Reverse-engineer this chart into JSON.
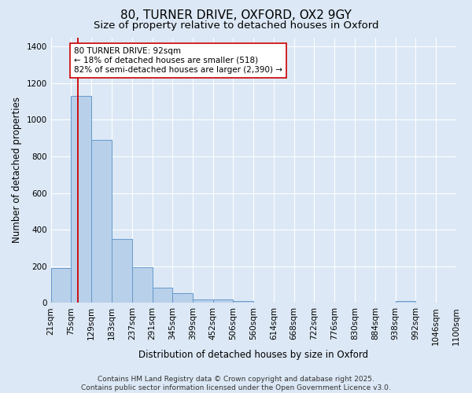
{
  "title_line1": "80, TURNER DRIVE, OXFORD, OX2 9GY",
  "title_line2": "Size of property relative to detached houses in Oxford",
  "xlabel": "Distribution of detached houses by size in Oxford",
  "ylabel": "Number of detached properties",
  "bin_edges": [
    21,
    75,
    129,
    183,
    237,
    291,
    345,
    399,
    452,
    506,
    560,
    614,
    668,
    722,
    776,
    830,
    884,
    938,
    992,
    1046,
    1100
  ],
  "bar_heights": [
    190,
    1130,
    890,
    350,
    195,
    85,
    55,
    20,
    20,
    10,
    0,
    0,
    0,
    0,
    0,
    0,
    0,
    10,
    0,
    0
  ],
  "bar_color": "#b8d0ea",
  "bar_edge_color": "#6699cc",
  "background_color": "#dce8f5",
  "grid_color": "#ffffff",
  "property_line_x": 92,
  "property_line_color": "#cc0000",
  "annotation_line1": "80 TURNER DRIVE: 92sqm",
  "annotation_line2": "← 18% of detached houses are smaller (518)",
  "annotation_line3": "82% of semi-detached houses are larger (2,390) →",
  "annotation_box_color": "#ffffff",
  "annotation_box_edge_color": "#cc0000",
  "ylim": [
    0,
    1450
  ],
  "yticks": [
    0,
    200,
    400,
    600,
    800,
    1000,
    1200,
    1400
  ],
  "copyright_text": "Contains HM Land Registry data © Crown copyright and database right 2025.\nContains public sector information licensed under the Open Government Licence v3.0.",
  "title_fontsize": 11,
  "subtitle_fontsize": 9.5,
  "axis_label_fontsize": 8.5,
  "tick_fontsize": 7.5,
  "annotation_fontsize": 7.5,
  "copyright_fontsize": 6.5
}
